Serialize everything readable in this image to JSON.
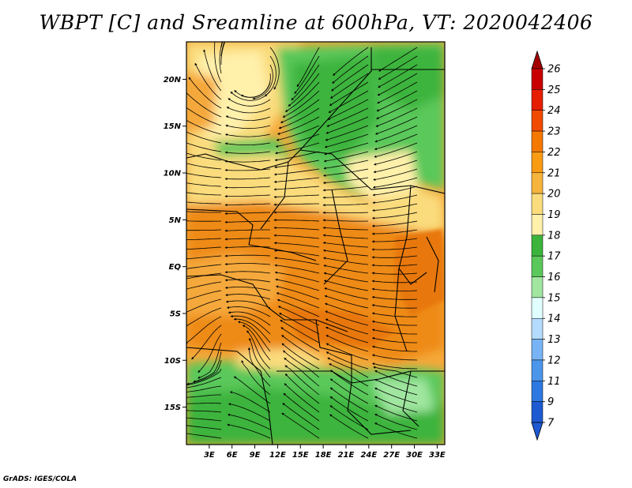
{
  "title": "WBPT [C] and Sreamline at 600hPa, VT: 2020042406",
  "credit": "GrADS: IGES/COLA",
  "map": {
    "variable": "Wet-bulb potential temperature",
    "units": "C",
    "level": "600hPa",
    "lat_labels": [
      "20N",
      "15N",
      "10N",
      "5N",
      "EQ",
      "5S",
      "10S",
      "15S"
    ],
    "lat_values": [
      20,
      15,
      10,
      5,
      0,
      -5,
      -10,
      -15
    ],
    "lon_labels": [
      "3E",
      "6E",
      "9E",
      "12E",
      "15E",
      "18E",
      "21E",
      "24E",
      "27E",
      "30E",
      "33E"
    ],
    "lon_values": [
      3,
      6,
      9,
      12,
      15,
      18,
      21,
      24,
      27,
      30,
      33
    ],
    "lat_range": [
      -19,
      24
    ],
    "lon_range": [
      0,
      34
    ],
    "regions": [
      {
        "name": "north-warm",
        "value": "19-20"
      },
      {
        "name": "sahel-green",
        "value": "16-18"
      },
      {
        "name": "equatorial-warm-belt",
        "value": "20-22"
      },
      {
        "name": "southern-green",
        "value": "16-18"
      }
    ]
  },
  "colorbar": {
    "levels": [
      "26",
      "25",
      "24",
      "23",
      "22",
      "21",
      "20",
      "19",
      "18",
      "17",
      "16",
      "15",
      "14",
      "13",
      "12",
      "11",
      "9",
      "7"
    ],
    "colors": [
      "#a50000",
      "#c80000",
      "#e61e00",
      "#f04b00",
      "#f57800",
      "#fa9b14",
      "#f5b43c",
      "#fadc7d",
      "#fff0aa",
      "#3cb43c",
      "#5ac85a",
      "#a0e6a0",
      "#e1ffff",
      "#b4dcff",
      "#78b4f5",
      "#4b96eb",
      "#2d78e1",
      "#1e5ad2"
    ],
    "top_arrow_color": "#a50000",
    "bottom_arrow_color": "#1e5ad2"
  },
  "palette": {
    "warm_deep": "#ee8a12",
    "warm_mid": "#f5a83a",
    "warm_light": "#fadc7d",
    "cream": "#fff0aa",
    "green_dark": "#3cb43c",
    "green_mid": "#5ac85a",
    "green_light": "#a0e6a0"
  }
}
